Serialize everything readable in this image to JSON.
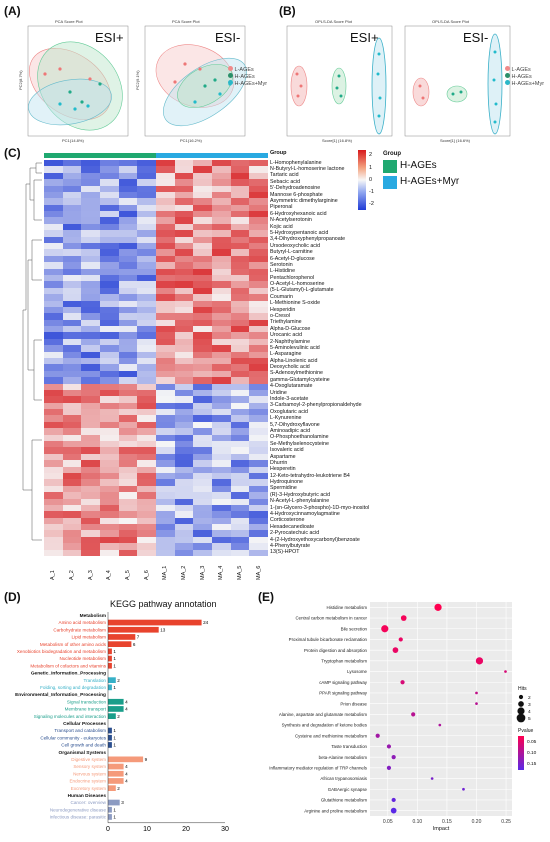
{
  "panels": {
    "a": {
      "letter": "(A)",
      "left_plot": {
        "title": "PCA Score Plot",
        "mode": "ESI+",
        "xlabel": "PC1(14.8%)",
        "ylabel": "PC2(8.7%)"
      },
      "right_plot": {
        "title": "PCA Score Plot",
        "mode": "ESI-",
        "xlabel": "PC1(16.2%)",
        "ylabel": "PC2(9.1%)"
      },
      "legend": [
        "L-AGEs",
        "H-AGEs",
        "H-AGEs+Myr"
      ]
    },
    "b": {
      "letter": "(B)",
      "left_plot": {
        "title": "OPLS-DA Score Plot",
        "mode": "ESI+",
        "xlabel": "Score[1] (16.8%)",
        "ylabel": "Orthogonal T score[1]"
      },
      "right_plot": {
        "title": "OPLS-DA Score Plot",
        "mode": "ESI-",
        "xlabel": "Score[1] (16.6%)",
        "ylabel": "Orthogonal T score[1]"
      },
      "legend": [
        "L-AGEs",
        "H-AGEs",
        "H-AGEs+Myr"
      ]
    },
    "c": {
      "letter": "(C)",
      "group_title": "Group",
      "groups": [
        "H-AGEs",
        "H-AGEs+Myr"
      ],
      "scale_ticks": [
        "2",
        "1",
        "0",
        "-1",
        "-2"
      ],
      "columns": [
        "A_1",
        "A_2",
        "A_3",
        "A_4",
        "A_5",
        "A_6",
        "MA_1",
        "MA_2",
        "MA_3",
        "MA_4",
        "MA_5",
        "MA_6"
      ],
      "metabolites": [
        "L-Homophenylalanine",
        "N-Butyryl-L-homoserine lactone",
        "Tartaric acid",
        "Sebacic acid",
        "5'-Dehydroadenosine",
        "Mannose 6-phosphate",
        "Asymmetric dimethylarginine",
        "Piperonal",
        "6-Hydroxyhexanoic acid",
        "N-Acetylserotonin",
        "Kojic acid",
        "5-Hydroxypentanoic acid",
        "3,4-Dihydroxyphenylpropanoate",
        "Ursodeoxycholic acid",
        "Butyryl-L-carnitine",
        "6-Acetyl-D-glucose",
        "Serotonin",
        "L-Histidine",
        "Pentachlorophenol",
        "O-Acetyl-L-homoserine",
        "(5-L-Glutamyl)-L-glutamate",
        "Coumarin",
        "L-Methionine S-oxide",
        "Hesperidin",
        "o-Cresol",
        "Triethylamine",
        "Alpha-D-Glucose",
        "Urocanic acid",
        "2-Naphthylamine",
        "5-Aminolevulinic acid",
        "L-Asparagine",
        "Alpha-Linolenic acid",
        "Deoxycholic acid",
        "S-Adenosylmethionine",
        "gamma-Glutamylcysteine",
        "4-Oxoglutaramate",
        "Uridine",
        "Indole-3-acetate",
        "3-Carbamoyl-2-phenylpropionaldehyde",
        "Oxoglutaric acid",
        "L-Kynurenine",
        "5,7-Dihydroxyflavone",
        "Aminoadipic acid",
        "O-Phosphoethanolamine",
        "Se-Methylselenocysteine",
        "Isovaleric acid",
        "Aspartame",
        "Dhurrin",
        "Hesperetin",
        "12-Keto-tetrahydro-leukotriene B4",
        "Hydroquinone",
        "Spermidine",
        "(R)-3-Hydroxybutyric acid",
        "N-Acetyl-L-phenylalanine",
        "1-(sn-Glycero-3-phospho)-1D-myo-inositol",
        "4-Hydroxycinnamoylagmatine",
        "Corticosterone",
        "Hexadecanedioate",
        "2-Pyrocatechuic acid",
        "4-(2-Hydroxyethoxycarbonyl)benzoate",
        "4-Phenylbutyrate",
        "13(S)-HPOT"
      ]
    },
    "d": {
      "letter": "(D)",
      "title": "KEGG pathway annotation",
      "x_ticks": [
        "0",
        "10",
        "20",
        "30"
      ],
      "categories": [
        {
          "name": "Metabolism",
          "color": "#e8432d",
          "items": [
            {
              "label": "Amino acid metabolism",
              "value": 24
            },
            {
              "label": "Carbohydrate metabolism",
              "value": 13
            },
            {
              "label": "Lipid metabolism",
              "value": 7
            },
            {
              "label": "Metabolism of other amino acids",
              "value": 6
            },
            {
              "label": "Xenobiotics biodegradation and metabolism",
              "value": 1
            },
            {
              "label": "Nucleotide metabolism",
              "value": 1
            },
            {
              "label": "Metabolism of cofactors and vitamins",
              "value": 1
            }
          ]
        },
        {
          "name": "Genetic_Information_Processing",
          "color": "#36b0c7",
          "items": [
            {
              "label": "Translation",
              "value": 2
            },
            {
              "label": "Folding, sorting and degradation",
              "value": 1
            }
          ]
        },
        {
          "name": "Environmental_Information_Processing",
          "color": "#1a9e8a",
          "items": [
            {
              "label": "Signal transduction",
              "value": 4
            },
            {
              "label": "Membrane transport",
              "value": 4
            },
            {
              "label": "Signaling molecules and interaction",
              "value": 2
            }
          ]
        },
        {
          "name": "Cellular Processes",
          "color": "#2b4f8f",
          "items": [
            {
              "label": "Transport and catabolism",
              "value": 1
            },
            {
              "label": "Cellular community - eukaryotes",
              "value": 1
            },
            {
              "label": "Cell growth and death",
              "value": 1
            }
          ]
        },
        {
          "name": "Organismal Systems",
          "color": "#f59a7a",
          "items": [
            {
              "label": "Digestive system",
              "value": 9
            },
            {
              "label": "Sensory system",
              "value": 4
            },
            {
              "label": "Nervous system",
              "value": 4
            },
            {
              "label": "Endocrine system",
              "value": 4
            },
            {
              "label": "Excretory system",
              "value": 2
            }
          ]
        },
        {
          "name": "Human Diseases",
          "color": "#8c9bc2",
          "items": [
            {
              "label": "Cancer: overview",
              "value": 3
            },
            {
              "label": "Neurodegenerative disease",
              "value": 1
            },
            {
              "label": "Infectious disease: parasitic",
              "value": 1
            }
          ]
        }
      ]
    },
    "e": {
      "letter": "(E)",
      "xlabel": "Impact",
      "x_ticks": [
        "0.05",
        "0.10",
        "0.15",
        "0.20",
        "0.25"
      ],
      "hits_title": "Hits",
      "hits_ticks": [
        "2",
        "3",
        "4",
        "5"
      ],
      "pvalue_title": "Pvalue",
      "pvalue_ticks": [
        "0.05",
        "0.10",
        "0.15"
      ]
    }
  },
  "chart_data": [
    {
      "type": "bar",
      "title": "KEGG pathway annotation",
      "orientation": "horizontal",
      "xlim": [
        0,
        30
      ],
      "categories": [
        "Amino acid metabolism",
        "Carbohydrate metabolism",
        "Lipid metabolism",
        "Metabolism of other amino acids",
        "Xenobiotics biodegradation and metabolism",
        "Nucleotide metabolism",
        "Metabolism of cofactors and vitamins",
        "Translation",
        "Folding, sorting and degradation",
        "Signal transduction",
        "Membrane transport",
        "Signaling molecules and interaction",
        "Transport and catabolism",
        "Cellular community - eukaryotes",
        "Cell growth and death",
        "Digestive system",
        "Sensory system",
        "Nervous system",
        "Endocrine system",
        "Excretory system",
        "Cancer: overview",
        "Neurodegenerative disease",
        "Infectious disease: parasitic"
      ],
      "values": [
        24,
        13,
        7,
        6,
        1,
        1,
        1,
        2,
        1,
        4,
        4,
        2,
        1,
        1,
        1,
        9,
        4,
        4,
        4,
        2,
        3,
        1,
        1
      ]
    },
    {
      "type": "scatter",
      "xlabel": "Impact",
      "xlim": [
        0.02,
        0.26
      ],
      "points": [
        {
          "label": "Histidine metabolism",
          "impact": 0.135,
          "hits": 4,
          "pvalue": 0.03
        },
        {
          "label": "Central carbon metabolism in cancer",
          "impact": 0.077,
          "hits": 3,
          "pvalue": 0.04
        },
        {
          "label": "Bile secretion",
          "impact": 0.045,
          "hits": 4,
          "pvalue": 0.04
        },
        {
          "label": "Proximal tubule bicarbonate reclamation",
          "impact": 0.072,
          "hits": 2,
          "pvalue": 0.05
        },
        {
          "label": "Protein digestion and absorption",
          "impact": 0.063,
          "hits": 3,
          "pvalue": 0.05
        },
        {
          "label": "Tryptophan metabolism",
          "impact": 0.205,
          "hits": 4,
          "pvalue": 0.05
        },
        {
          "label": "Lysosome",
          "impact": 0.249,
          "hits": 1,
          "pvalue": 0.07
        },
        {
          "label": "cAMP signaling pathway",
          "impact": 0.075,
          "hits": 2,
          "pvalue": 0.07
        },
        {
          "label": "PPAR signaling pathway",
          "impact": 0.2,
          "hits": 1,
          "pvalue": 0.09
        },
        {
          "label": "Prion disease",
          "impact": 0.2,
          "hits": 1,
          "pvalue": 0.1
        },
        {
          "label": "Alanine, aspartate and glutamate metabolism",
          "impact": 0.093,
          "hits": 2,
          "pvalue": 0.1
        },
        {
          "label": "Synthesis and degradation of ketone bodies",
          "impact": 0.138,
          "hits": 1,
          "pvalue": 0.11
        },
        {
          "label": "Cysteine and methionine metabolism",
          "impact": 0.033,
          "hits": 2,
          "pvalue": 0.12
        },
        {
          "label": "Taste transduction",
          "impact": 0.052,
          "hits": 2,
          "pvalue": 0.13
        },
        {
          "label": "beta-Alanine metabolism",
          "impact": 0.06,
          "hits": 2,
          "pvalue": 0.14
        },
        {
          "label": "Inflammatory mediator regulation of TRP channels",
          "impact": 0.052,
          "hits": 2,
          "pvalue": 0.15
        },
        {
          "label": "African trypanosomiasis",
          "impact": 0.125,
          "hits": 1,
          "pvalue": 0.16
        },
        {
          "label": "GABAergic synapse",
          "impact": 0.178,
          "hits": 1,
          "pvalue": 0.17
        },
        {
          "label": "Glutathione metabolism",
          "impact": 0.06,
          "hits": 2,
          "pvalue": 0.18
        },
        {
          "label": "Arginine and proline metabolism",
          "impact": 0.06,
          "hits": 3,
          "pvalue": 0.19
        }
      ]
    }
  ]
}
